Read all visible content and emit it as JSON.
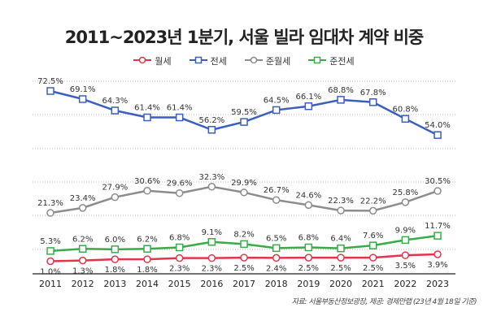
{
  "chart_data": {
    "type": "line",
    "title": "2011~2023년 1분기, 서울 빌라 임대차 계약 비중",
    "categories": [
      "2011",
      "2012",
      "2013",
      "2014",
      "2015",
      "2016",
      "2017",
      "2018",
      "2019",
      "2020",
      "2021",
      "2022",
      "2023"
    ],
    "series": [
      {
        "name": "월세",
        "color": "#e0354b",
        "marker": "circle",
        "values": [
          1.0,
          1.3,
          1.8,
          1.8,
          2.3,
          2.3,
          2.5,
          2.4,
          2.5,
          2.5,
          2.5,
          3.5,
          3.9
        ]
      },
      {
        "name": "전세",
        "color": "#3b5fbf",
        "marker": "square",
        "values": [
          72.5,
          69.1,
          64.3,
          61.4,
          61.4,
          56.2,
          59.5,
          64.5,
          66.1,
          68.8,
          67.8,
          60.8,
          54.0
        ]
      },
      {
        "name": "준월세",
        "color": "#8c8c8c",
        "marker": "circle",
        "values": [
          21.3,
          23.4,
          27.9,
          30.6,
          29.6,
          32.3,
          29.9,
          26.7,
          24.6,
          22.3,
          22.2,
          25.8,
          30.5
        ]
      },
      {
        "name": "준전세",
        "color": "#3aab4a",
        "marker": "square",
        "values": [
          5.3,
          6.2,
          6.0,
          6.2,
          6.8,
          9.1,
          8.2,
          6.5,
          6.8,
          6.4,
          7.6,
          9.9,
          11.7
        ]
      }
    ],
    "value_suffix": "%",
    "grid": true,
    "legend": "top-center"
  },
  "source": "자료: 서울부동산정보광장, 제공: 경제만랩 (23년 4월 18일 기준)"
}
